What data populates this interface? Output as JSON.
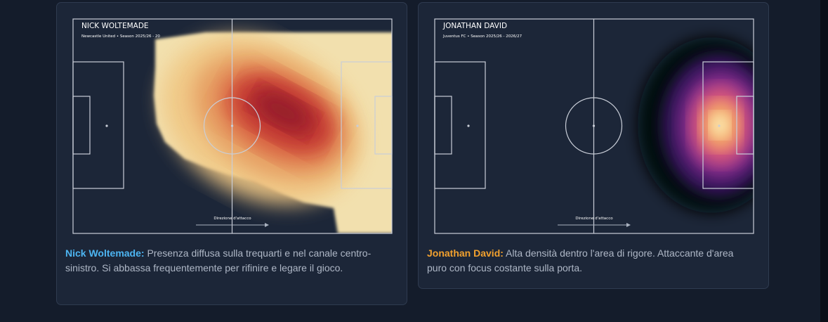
{
  "cards": [
    {
      "title": "NICK WOLTEMADE",
      "subtitle": "Newcastle United • Season 2025/26 - 20",
      "direction": "Direzione d'attacco",
      "name": "Nick Woltemade:",
      "caption": "Presenza diffusa sulla trequarti e nel canale centro-sinistro. Si abbassa frequentemente per rifinire e legare il gioco."
    },
    {
      "title": "JONATHAN DAVID",
      "subtitle": "Juventus FC • Season 2025/26 - 2026/27",
      "direction": "Direzione d'attacco",
      "name": "Jonathan David:",
      "caption": "Alta densità dentro l'area di rigore. Attaccante d'area puro con focus costante sulla porta."
    }
  ]
}
